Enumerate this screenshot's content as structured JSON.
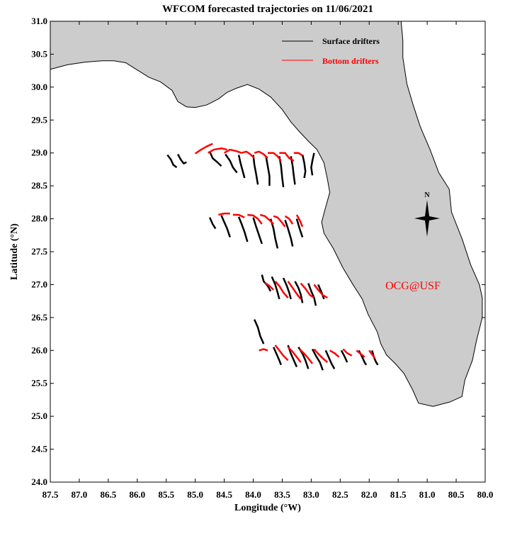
{
  "title": "WFCOM forecasted trajectories on 11/06/2021",
  "xlabel": "Longitude (°W)",
  "ylabel": "Latitude (°N)",
  "watermark": "OCG@USF",
  "north_label": "N",
  "colors": {
    "land": "#cccccc",
    "surface": "#000000",
    "bottom": "#ff0000",
    "watermark": "#ff0000",
    "frame": "#000000",
    "coast": "#000000"
  },
  "icons": {
    "compass": "compass-rose-icon"
  },
  "chart_data": {
    "type": "map",
    "xlim": [
      87.5,
      80.0
    ],
    "ylim": [
      24.0,
      31.0
    ],
    "x_ticks": [
      "87.5",
      "87.0",
      "86.5",
      "86.0",
      "85.5",
      "85.0",
      "84.5",
      "84.0",
      "83.5",
      "83.0",
      "82.5",
      "82.0",
      "81.5",
      "81.0",
      "80.5",
      "80.0"
    ],
    "y_ticks": [
      "31.0",
      "30.5",
      "30.0",
      "29.5",
      "29.0",
      "28.5",
      "28.0",
      "27.5",
      "27.0",
      "26.5",
      "26.0",
      "25.5",
      "25.0",
      "24.5",
      "24.0"
    ],
    "legend": {
      "position": "top-right",
      "entries": [
        {
          "label": "Surface drifters",
          "color": "#000000"
        },
        {
          "label": "Bottom drifters",
          "color": "#ff0000"
        }
      ]
    },
    "coastline": [
      [
        87.5,
        30.27
      ],
      [
        87.2,
        30.34
      ],
      [
        86.9,
        30.38
      ],
      [
        86.6,
        30.4
      ],
      [
        86.4,
        30.4
      ],
      [
        86.2,
        30.37
      ],
      [
        86.0,
        30.26
      ],
      [
        85.8,
        30.15
      ],
      [
        85.6,
        30.08
      ],
      [
        85.4,
        29.95
      ],
      [
        85.3,
        29.78
      ],
      [
        85.15,
        29.7
      ],
      [
        85.0,
        29.69
      ],
      [
        84.8,
        29.73
      ],
      [
        84.6,
        29.82
      ],
      [
        84.45,
        29.92
      ],
      [
        84.3,
        29.98
      ],
      [
        84.1,
        30.04
      ],
      [
        83.9,
        29.97
      ],
      [
        83.7,
        29.85
      ],
      [
        83.5,
        29.66
      ],
      [
        83.35,
        29.47
      ],
      [
        83.2,
        29.32
      ],
      [
        83.05,
        29.18
      ],
      [
        82.9,
        29.05
      ],
      [
        82.78,
        28.85
      ],
      [
        82.72,
        28.6
      ],
      [
        82.68,
        28.4
      ],
      [
        82.75,
        28.18
      ],
      [
        82.82,
        27.95
      ],
      [
        82.78,
        27.78
      ],
      [
        82.62,
        27.55
      ],
      [
        82.45,
        27.25
      ],
      [
        82.28,
        27.0
      ],
      [
        82.12,
        26.78
      ],
      [
        82.02,
        26.55
      ],
      [
        81.86,
        26.28
      ],
      [
        81.8,
        26.1
      ],
      [
        81.7,
        25.93
      ],
      [
        81.55,
        25.8
      ],
      [
        81.4,
        25.65
      ],
      [
        81.25,
        25.4
      ],
      [
        81.15,
        25.2
      ],
      [
        80.9,
        25.15
      ],
      [
        80.6,
        25.22
      ],
      [
        80.4,
        25.3
      ],
      [
        80.35,
        25.55
      ],
      [
        80.22,
        25.85
      ],
      [
        80.15,
        26.15
      ],
      [
        80.05,
        26.5
      ],
      [
        80.05,
        26.8
      ],
      [
        80.1,
        27.0
      ],
      [
        80.25,
        27.3
      ],
      [
        80.4,
        27.7
      ],
      [
        80.58,
        28.1
      ],
      [
        80.62,
        28.45
      ],
      [
        80.8,
        28.7
      ],
      [
        80.95,
        29.05
      ],
      [
        81.12,
        29.4
      ],
      [
        81.25,
        29.75
      ],
      [
        81.35,
        30.05
      ],
      [
        81.42,
        30.45
      ],
      [
        81.42,
        30.71
      ],
      [
        81.45,
        31.0
      ]
    ],
    "surface_trajectories": [
      [
        [
          85.48,
          28.97
        ],
        [
          85.42,
          28.9
        ],
        [
          85.38,
          28.82
        ],
        [
          85.32,
          28.78
        ]
      ],
      [
        [
          85.3,
          28.98
        ],
        [
          85.25,
          28.9
        ],
        [
          85.2,
          28.84
        ],
        [
          85.15,
          28.86
        ]
      ],
      [
        [
          84.75,
          29.02
        ],
        [
          84.7,
          28.92
        ],
        [
          84.62,
          28.86
        ],
        [
          84.55,
          28.8
        ]
      ],
      [
        [
          84.48,
          28.98
        ],
        [
          84.4,
          28.88
        ],
        [
          84.35,
          28.78
        ],
        [
          84.28,
          28.7
        ]
      ],
      [
        [
          84.25,
          28.97
        ],
        [
          84.22,
          28.85
        ],
        [
          84.18,
          28.72
        ],
        [
          84.15,
          28.62
        ]
      ],
      [
        [
          84.0,
          28.97
        ],
        [
          83.98,
          28.82
        ],
        [
          83.95,
          28.68
        ],
        [
          83.92,
          28.52
        ]
      ],
      [
        [
          83.78,
          28.95
        ],
        [
          83.75,
          28.8
        ],
        [
          83.72,
          28.65
        ],
        [
          83.72,
          28.5
        ]
      ],
      [
        [
          83.55,
          28.95
        ],
        [
          83.52,
          28.8
        ],
        [
          83.5,
          28.62
        ],
        [
          83.48,
          28.48
        ]
      ],
      [
        [
          83.35,
          28.95
        ],
        [
          83.32,
          28.8
        ],
        [
          83.3,
          28.65
        ],
        [
          83.28,
          28.52
        ]
      ],
      [
        [
          83.15,
          28.97
        ],
        [
          83.12,
          28.85
        ],
        [
          83.1,
          28.72
        ],
        [
          83.12,
          28.62
        ]
      ],
      [
        [
          82.95,
          29.0
        ],
        [
          82.98,
          28.88
        ],
        [
          83.0,
          28.78
        ],
        [
          82.98,
          28.66
        ]
      ],
      [
        [
          84.75,
          28.02
        ],
        [
          84.7,
          27.92
        ],
        [
          84.65,
          27.85
        ]
      ],
      [
        [
          84.55,
          28.05
        ],
        [
          84.5,
          27.95
        ],
        [
          84.45,
          27.85
        ],
        [
          84.4,
          27.72
        ]
      ],
      [
        [
          84.25,
          28.03
        ],
        [
          84.2,
          27.92
        ],
        [
          84.15,
          27.8
        ],
        [
          84.1,
          27.65
        ]
      ],
      [
        [
          84.0,
          28.02
        ],
        [
          83.95,
          27.88
        ],
        [
          83.9,
          27.75
        ],
        [
          83.85,
          27.62
        ]
      ],
      [
        [
          83.7,
          28.0
        ],
        [
          83.65,
          27.85
        ],
        [
          83.62,
          27.7
        ],
        [
          83.58,
          27.55
        ]
      ],
      [
        [
          83.45,
          27.98
        ],
        [
          83.4,
          27.85
        ],
        [
          83.35,
          27.7
        ],
        [
          83.32,
          27.58
        ]
      ],
      [
        [
          83.25,
          28.0
        ],
        [
          83.2,
          27.85
        ],
        [
          83.15,
          27.72
        ]
      ],
      [
        [
          83.85,
          27.15
        ],
        [
          83.82,
          27.05
        ],
        [
          83.75,
          26.98
        ],
        [
          83.7,
          26.9
        ]
      ],
      [
        [
          83.68,
          27.12
        ],
        [
          83.62,
          27.0
        ],
        [
          83.58,
          26.88
        ],
        [
          83.55,
          26.78
        ]
      ],
      [
        [
          83.48,
          27.1
        ],
        [
          83.42,
          26.98
        ],
        [
          83.38,
          26.88
        ],
        [
          83.35,
          26.78
        ]
      ],
      [
        [
          83.28,
          27.05
        ],
        [
          83.22,
          26.95
        ],
        [
          83.18,
          26.85
        ],
        [
          83.15,
          26.72
        ]
      ],
      [
        [
          83.05,
          27.02
        ],
        [
          83.0,
          26.9
        ],
        [
          82.95,
          26.8
        ],
        [
          82.92,
          26.68
        ]
      ],
      [
        [
          82.88,
          27.0
        ],
        [
          82.82,
          26.88
        ],
        [
          82.78,
          26.78
        ]
      ],
      [
        [
          83.98,
          26.47
        ],
        [
          83.92,
          26.35
        ],
        [
          83.88,
          26.22
        ],
        [
          83.82,
          26.1
        ]
      ],
      [
        [
          83.65,
          26.05
        ],
        [
          83.6,
          25.95
        ],
        [
          83.55,
          25.85
        ],
        [
          83.52,
          25.78
        ]
      ],
      [
        [
          83.4,
          26.08
        ],
        [
          83.35,
          25.95
        ],
        [
          83.3,
          25.85
        ],
        [
          83.25,
          25.75
        ]
      ],
      [
        [
          83.22,
          26.05
        ],
        [
          83.15,
          25.95
        ],
        [
          83.1,
          25.85
        ],
        [
          83.05,
          25.72
        ]
      ],
      [
        [
          82.98,
          26.02
        ],
        [
          82.92,
          25.92
        ],
        [
          82.85,
          25.82
        ],
        [
          82.8,
          25.7
        ]
      ],
      [
        [
          82.75,
          26.0
        ],
        [
          82.7,
          25.9
        ],
        [
          82.65,
          25.8
        ],
        [
          82.6,
          25.72
        ]
      ],
      [
        [
          82.48,
          26.0
        ],
        [
          82.42,
          25.9
        ],
        [
          82.38,
          25.82
        ]
      ],
      [
        [
          82.18,
          26.0
        ],
        [
          82.12,
          25.9
        ],
        [
          82.08,
          25.82
        ],
        [
          82.05,
          25.78
        ]
      ],
      [
        [
          81.95,
          26.0
        ],
        [
          81.92,
          25.9
        ],
        [
          81.88,
          25.82
        ],
        [
          81.85,
          25.78
        ]
      ]
    ],
    "bottom_trajectories": [
      [
        [
          85.0,
          28.99
        ],
        [
          84.9,
          29.05
        ],
        [
          84.8,
          29.1
        ],
        [
          84.7,
          29.14
        ]
      ],
      [
        [
          84.78,
          29.0
        ],
        [
          84.68,
          29.05
        ],
        [
          84.55,
          29.07
        ],
        [
          84.45,
          29.05
        ]
      ],
      [
        [
          84.5,
          29.0
        ],
        [
          84.4,
          29.05
        ],
        [
          84.3,
          29.03
        ],
        [
          84.2,
          29.0
        ]
      ],
      [
        [
          84.2,
          29.0
        ],
        [
          84.12,
          29.02
        ],
        [
          84.05,
          28.98
        ],
        [
          83.98,
          28.92
        ]
      ],
      [
        [
          83.98,
          29.0
        ],
        [
          83.9,
          29.02
        ],
        [
          83.82,
          28.98
        ],
        [
          83.75,
          28.92
        ]
      ],
      [
        [
          83.75,
          29.0
        ],
        [
          83.65,
          29.0
        ],
        [
          83.58,
          28.95
        ],
        [
          83.52,
          28.88
        ]
      ],
      [
        [
          83.55,
          29.0
        ],
        [
          83.45,
          29.0
        ],
        [
          83.38,
          28.92
        ],
        [
          83.3,
          28.88
        ]
      ],
      [
        [
          83.3,
          29.0
        ],
        [
          83.22,
          29.0
        ],
        [
          83.15,
          28.96
        ]
      ],
      [
        [
          84.6,
          28.06
        ],
        [
          84.5,
          28.08
        ],
        [
          84.4,
          28.08
        ]
      ],
      [
        [
          84.35,
          28.06
        ],
        [
          84.25,
          28.06
        ],
        [
          84.15,
          28.02
        ]
      ],
      [
        [
          84.1,
          28.06
        ],
        [
          84.0,
          28.05
        ],
        [
          83.92,
          28.0
        ],
        [
          83.85,
          27.92
        ]
      ],
      [
        [
          83.88,
          28.06
        ],
        [
          83.8,
          28.04
        ],
        [
          83.72,
          27.98
        ],
        [
          83.65,
          27.92
        ]
      ],
      [
        [
          83.65,
          28.04
        ],
        [
          83.58,
          28.02
        ],
        [
          83.52,
          27.96
        ],
        [
          83.45,
          27.88
        ]
      ],
      [
        [
          83.45,
          28.04
        ],
        [
          83.38,
          28.0
        ],
        [
          83.32,
          27.92
        ]
      ],
      [
        [
          83.25,
          28.06
        ],
        [
          83.2,
          27.98
        ],
        [
          83.15,
          27.88
        ]
      ],
      [
        [
          83.8,
          27.03
        ],
        [
          83.72,
          26.98
        ],
        [
          83.65,
          26.92
        ]
      ],
      [
        [
          83.62,
          27.05
        ],
        [
          83.55,
          26.98
        ],
        [
          83.48,
          26.88
        ],
        [
          83.4,
          26.8
        ]
      ],
      [
        [
          83.4,
          27.05
        ],
        [
          83.32,
          26.95
        ],
        [
          83.25,
          26.86
        ],
        [
          83.18,
          26.78
        ]
      ],
      [
        [
          83.18,
          27.02
        ],
        [
          83.1,
          26.94
        ],
        [
          83.02,
          26.84
        ],
        [
          82.95,
          26.8
        ]
      ],
      [
        [
          82.95,
          27.0
        ],
        [
          82.88,
          26.92
        ],
        [
          82.8,
          26.84
        ],
        [
          82.72,
          26.8
        ]
      ],
      [
        [
          83.9,
          26.0
        ],
        [
          83.82,
          26.02
        ],
        [
          83.75,
          26.0
        ]
      ],
      [
        [
          83.62,
          26.08
        ],
        [
          83.55,
          26.0
        ],
        [
          83.48,
          25.92
        ],
        [
          83.4,
          25.85
        ]
      ],
      [
        [
          83.4,
          26.05
        ],
        [
          83.32,
          25.98
        ],
        [
          83.25,
          25.9
        ],
        [
          83.18,
          25.82
        ]
      ],
      [
        [
          83.2,
          26.02
        ],
        [
          83.12,
          25.95
        ],
        [
          83.05,
          25.88
        ],
        [
          82.98,
          25.8
        ]
      ],
      [
        [
          82.95,
          26.02
        ],
        [
          82.88,
          25.95
        ],
        [
          82.8,
          25.88
        ],
        [
          82.72,
          25.82
        ]
      ],
      [
        [
          82.68,
          26.0
        ],
        [
          82.6,
          25.96
        ],
        [
          82.52,
          25.9
        ]
      ],
      [
        [
          82.45,
          26.02
        ],
        [
          82.38,
          25.96
        ],
        [
          82.3,
          25.92
        ]
      ],
      [
        [
          82.22,
          26.0
        ],
        [
          82.15,
          25.95
        ],
        [
          82.08,
          25.9
        ]
      ],
      [
        [
          82.0,
          26.0
        ],
        [
          81.95,
          25.94
        ],
        [
          81.9,
          25.88
        ]
      ]
    ]
  }
}
